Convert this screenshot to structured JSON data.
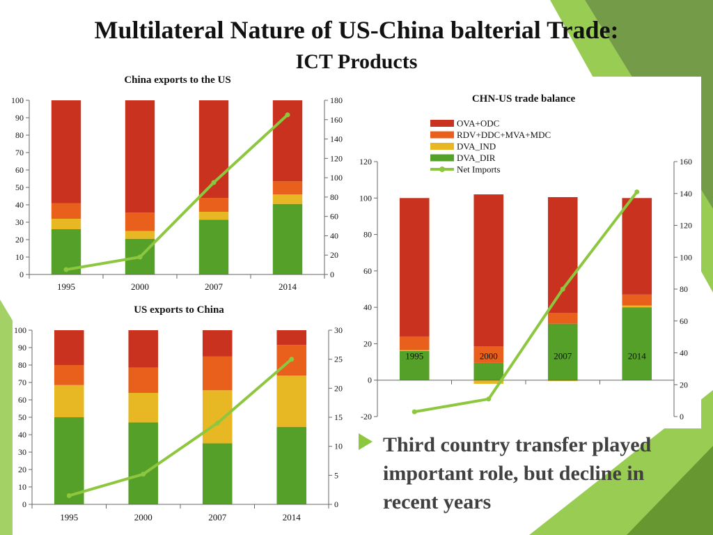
{
  "slide": {
    "title": "Multilateral Nature of US-China balterial Trade:",
    "subtitle": "ICT Products",
    "bullet": "Third country transfer played important role, but decline in recent years"
  },
  "colors": {
    "ova_odc": "#c8321e",
    "rdv": "#e8601c",
    "dva_ind": "#e8b824",
    "dva_dir": "#55a028",
    "net_line": "#8dc63f",
    "decor_green": "#8dc63f",
    "decor_dark": "#5a8a28"
  },
  "chart_data": [
    {
      "id": "china_exports",
      "type": "bar",
      "title": "China exports to the US",
      "categories": [
        "1995",
        "2000",
        "2007",
        "2014"
      ],
      "series": [
        {
          "name": "DVA_DIR",
          "values": [
            26,
            20.5,
            31.5,
            40.5
          ]
        },
        {
          "name": "DVA_IND",
          "values": [
            6,
            4.5,
            4.5,
            5.5
          ]
        },
        {
          "name": "RDV+DDC+MVA+MDC",
          "values": [
            9,
            10.5,
            8,
            7.5
          ]
        },
        {
          "name": "OVA+ODC",
          "values": [
            59,
            64.5,
            56,
            46.5
          ]
        }
      ],
      "line": {
        "name": "Net Imports",
        "values": [
          5,
          18,
          95,
          165
        ]
      },
      "ylim": [
        0,
        100
      ],
      "yticks": [
        0,
        10,
        20,
        30,
        40,
        50,
        60,
        70,
        80,
        90,
        100
      ],
      "y2lim": [
        0,
        180
      ],
      "y2ticks": [
        0,
        20,
        40,
        60,
        80,
        100,
        120,
        140,
        160,
        180
      ]
    },
    {
      "id": "us_exports",
      "type": "bar",
      "title": "US exports to China",
      "categories": [
        "1995",
        "2000",
        "2007",
        "2014"
      ],
      "series": [
        {
          "name": "DVA_DIR",
          "values": [
            50,
            47,
            35,
            44.5
          ]
        },
        {
          "name": "DVA_IND",
          "values": [
            18.5,
            17,
            30.5,
            29.5
          ]
        },
        {
          "name": "RDV+DDC+MVA+MDC",
          "values": [
            11.5,
            14.5,
            19.5,
            17.5
          ]
        },
        {
          "name": "OVA+ODC",
          "values": [
            20,
            21.5,
            15,
            8.5
          ]
        }
      ],
      "line": {
        "name": "Net Imports",
        "values": [
          1.5,
          5.2,
          14,
          25
        ]
      },
      "ylim": [
        0,
        100
      ],
      "yticks": [
        0,
        10,
        20,
        30,
        40,
        50,
        60,
        70,
        80,
        90,
        100
      ],
      "y2lim": [
        0,
        30
      ],
      "y2ticks": [
        0,
        5,
        10,
        15,
        20,
        25,
        30
      ],
      "y2ticklabels": [
        "0",
        "5",
        "10",
        "15",
        "20",
        "25",
        "30"
      ]
    },
    {
      "id": "trade_balance",
      "type": "bar",
      "title": "CHN-US trade balance",
      "categories": [
        "1995",
        "2000",
        "2007",
        "2014"
      ],
      "series": [
        {
          "name": "DVA_DIR",
          "values": [
            16,
            9.5,
            31,
            40
          ]
        },
        {
          "name": "DVA_IND",
          "values": [
            0.5,
            -2,
            -0.5,
            1
          ]
        },
        {
          "name": "RDV+DDC+MVA+MDC",
          "values": [
            7.5,
            9,
            6,
            6
          ]
        },
        {
          "name": "OVA+ODC",
          "values": [
            76,
            83.5,
            63.5,
            53
          ]
        }
      ],
      "line": {
        "name": "Net Imports",
        "values": [
          3,
          11,
          80,
          141
        ]
      },
      "ylim": [
        -20,
        120
      ],
      "yticks": [
        -20,
        0,
        20,
        40,
        60,
        80,
        100,
        120
      ],
      "y2lim": [
        0,
        160
      ],
      "y2ticks": [
        0,
        20,
        40,
        60,
        80,
        100,
        120,
        140,
        160
      ],
      "legend": {
        "placement": "top-left",
        "entries": [
          "OVA+ODC",
          "RDV+DDC+MVA+MDC",
          "DVA_IND",
          "DVA_DIR",
          "Net Imports"
        ]
      }
    }
  ]
}
